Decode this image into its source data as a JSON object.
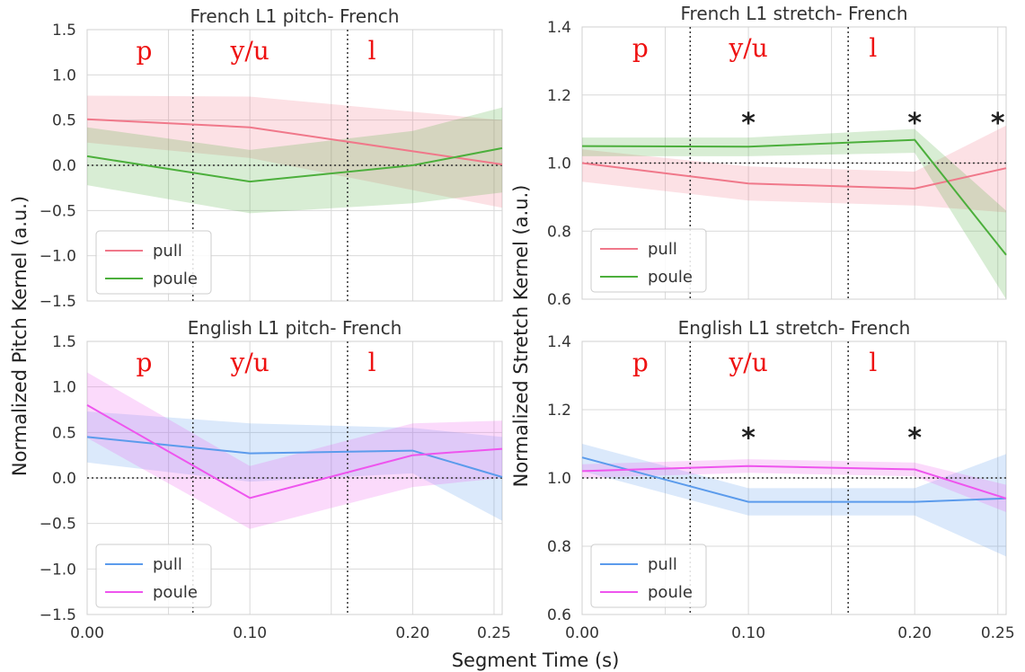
{
  "figure": {
    "ylabel_left": "Normalized Pitch Kernel (a.u.)",
    "ylabel_right": "Normalized Stretch Kernel (a.u.)",
    "xlabel": "Segment Time (s)"
  },
  "chart_data": [
    {
      "type": "line",
      "title": "French L1 pitch- French",
      "xlim": [
        0,
        0.255
      ],
      "ylim": [
        -1.5,
        1.5
      ],
      "yticks": [
        -1.5,
        -1.0,
        -0.5,
        0.0,
        0.5,
        1.0,
        1.5
      ],
      "ytick_labels": [
        "−1.5",
        "−1.0",
        "−0.5",
        "0.0",
        "0.5",
        "1.0",
        "1.5"
      ],
      "xticks": [],
      "xtick_labels": [],
      "reference_line": 0.0,
      "segment_boundaries": [
        0.065,
        0.16
      ],
      "phonemes": [
        {
          "label": "p",
          "x": 0.035
        },
        {
          "label": "y/u",
          "x": 0.1
        },
        {
          "label": "l",
          "x": 0.175
        }
      ],
      "star_x": [],
      "star_y": 0,
      "legend_position": "lower-left",
      "series": [
        {
          "name": "pull",
          "color": "#f0788a",
          "x": [
            0,
            0.1,
            0.255
          ],
          "y": [
            0.51,
            0.42,
            0.01
          ],
          "lower": [
            0.25,
            0.08,
            -0.47
          ],
          "upper": [
            0.77,
            0.76,
            0.5
          ]
        },
        {
          "name": "poule",
          "color": "#4caf3c",
          "x": [
            0,
            0.1,
            0.2,
            0.255
          ],
          "y": [
            0.1,
            -0.18,
            0.0,
            0.19
          ],
          "lower": [
            -0.22,
            -0.53,
            -0.42,
            -0.3
          ],
          "upper": [
            0.42,
            0.17,
            0.38,
            0.64
          ]
        }
      ]
    },
    {
      "type": "line",
      "title": "French L1 stretch- French",
      "xlim": [
        0,
        0.255
      ],
      "ylim": [
        0.6,
        1.4
      ],
      "yticks": [
        0.6,
        0.8,
        1.0,
        1.2,
        1.4
      ],
      "ytick_labels": [
        "0.6",
        "0.8",
        "1.0",
        "1.2",
        "1.4"
      ],
      "xticks": [],
      "xtick_labels": [],
      "reference_line": 1.0,
      "segment_boundaries": [
        0.065,
        0.16
      ],
      "phonemes": [
        {
          "label": "p",
          "x": 0.035
        },
        {
          "label": "y/u",
          "x": 0.1
        },
        {
          "label": "l",
          "x": 0.175
        }
      ],
      "star_x": [
        0.1,
        0.2,
        0.25
      ],
      "star_y": 1.125,
      "legend_position": "lower-left",
      "series": [
        {
          "name": "pull",
          "color": "#f0788a",
          "x": [
            0,
            0.1,
            0.2,
            0.255
          ],
          "y": [
            1.0,
            0.94,
            0.925,
            0.985
          ],
          "lower": [
            0.945,
            0.89,
            0.875,
            0.855
          ],
          "upper": [
            1.04,
            0.99,
            0.975,
            1.11
          ]
        },
        {
          "name": "poule",
          "color": "#4caf3c",
          "x": [
            0,
            0.1,
            0.2,
            0.255
          ],
          "y": [
            1.05,
            1.048,
            1.068,
            0.73
          ],
          "lower": [
            1.02,
            1.02,
            1.03,
            0.6
          ],
          "upper": [
            1.075,
            1.075,
            1.1,
            0.86
          ]
        }
      ]
    },
    {
      "type": "line",
      "title": "English L1 pitch- French",
      "xlim": [
        0,
        0.255
      ],
      "ylim": [
        -1.5,
        1.5
      ],
      "yticks": [
        -1.5,
        -1.0,
        -0.5,
        0.0,
        0.5,
        1.0,
        1.5
      ],
      "ytick_labels": [
        "−1.5",
        "−1.0",
        "−0.5",
        "0.0",
        "0.5",
        "1.0",
        "1.5"
      ],
      "xticks": [
        0.0,
        0.1,
        0.2,
        0.25
      ],
      "xtick_labels": [
        "0.00",
        "0.10",
        "0.20",
        "0.25"
      ],
      "reference_line": 0.0,
      "segment_boundaries": [
        0.065,
        0.16
      ],
      "phonemes": [
        {
          "label": "p",
          "x": 0.035
        },
        {
          "label": "y/u",
          "x": 0.1
        },
        {
          "label": "l",
          "x": 0.175
        }
      ],
      "star_x": [],
      "star_y": 0,
      "legend_position": "lower-left",
      "series": [
        {
          "name": "pull",
          "color": "#5b9bec",
          "x": [
            0,
            0.1,
            0.2,
            0.255
          ],
          "y": [
            0.45,
            0.27,
            0.3,
            0.01
          ],
          "lower": [
            0.17,
            -0.04,
            0.05,
            -0.47
          ],
          "upper": [
            0.73,
            0.6,
            0.55,
            0.45
          ]
        },
        {
          "name": "poule",
          "color": "#ee55ee",
          "x": [
            0,
            0.1,
            0.2,
            0.255
          ],
          "y": [
            0.8,
            -0.22,
            0.25,
            0.32
          ],
          "lower": [
            0.44,
            -0.56,
            -0.1,
            0.0
          ],
          "upper": [
            1.16,
            0.13,
            0.6,
            0.63
          ]
        }
      ]
    },
    {
      "type": "line",
      "title": "English L1 stretch- French",
      "xlim": [
        0,
        0.255
      ],
      "ylim": [
        0.6,
        1.4
      ],
      "yticks": [
        0.6,
        0.8,
        1.0,
        1.2,
        1.4
      ],
      "ytick_labels": [
        "0.6",
        "0.8",
        "1.0",
        "1.2",
        "1.4"
      ],
      "xticks": [
        0.0,
        0.1,
        0.2,
        0.25
      ],
      "xtick_labels": [
        "0.00",
        "0.10",
        "0.20",
        "0.25"
      ],
      "reference_line": 1.0,
      "segment_boundaries": [
        0.065,
        0.16
      ],
      "phonemes": [
        {
          "label": "p",
          "x": 0.035
        },
        {
          "label": "y/u",
          "x": 0.1
        },
        {
          "label": "l",
          "x": 0.175
        }
      ],
      "star_x": [
        0.1,
        0.2
      ],
      "star_y": 1.125,
      "legend_position": "lower-left",
      "series": [
        {
          "name": "pull",
          "color": "#5b9bec",
          "x": [
            0,
            0.1,
            0.2,
            0.255
          ],
          "y": [
            1.06,
            0.93,
            0.93,
            0.94
          ],
          "lower": [
            1.02,
            0.89,
            0.89,
            0.77
          ],
          "upper": [
            1.1,
            0.97,
            0.97,
            1.07
          ]
        },
        {
          "name": "poule",
          "color": "#ee55ee",
          "x": [
            0,
            0.1,
            0.2,
            0.255
          ],
          "y": [
            1.02,
            1.035,
            1.025,
            0.94
          ],
          "lower": [
            1.0,
            1.015,
            1.005,
            0.9
          ],
          "upper": [
            1.04,
            1.055,
            1.045,
            0.98
          ]
        }
      ]
    }
  ]
}
